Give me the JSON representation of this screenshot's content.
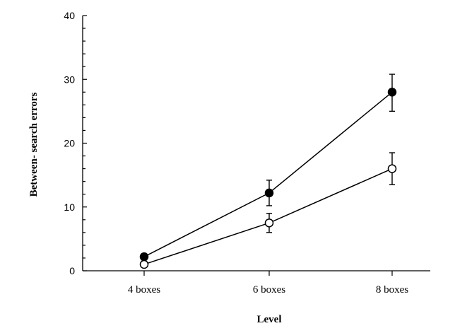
{
  "chart_data": {
    "type": "line",
    "title": "",
    "xlabel": "Level",
    "ylabel": "Between- search errors",
    "categories": [
      "4 boxes",
      "6 boxes",
      "8 boxes"
    ],
    "ylim": [
      0,
      40
    ],
    "yticks": [
      0,
      10,
      20,
      30,
      40
    ],
    "grid": false,
    "series": [
      {
        "marker": "filled-circle",
        "values": [
          2.2,
          12.2,
          28.0
        ],
        "error": [
          [
            0.5,
            0.5
          ],
          [
            2.0,
            2.0
          ],
          [
            3.0,
            2.8
          ]
        ]
      },
      {
        "marker": "open-circle",
        "values": [
          1.0,
          7.5,
          16.0
        ],
        "error": [
          [
            0.4,
            0.4
          ],
          [
            1.5,
            1.5
          ],
          [
            2.5,
            2.5
          ]
        ]
      }
    ]
  }
}
